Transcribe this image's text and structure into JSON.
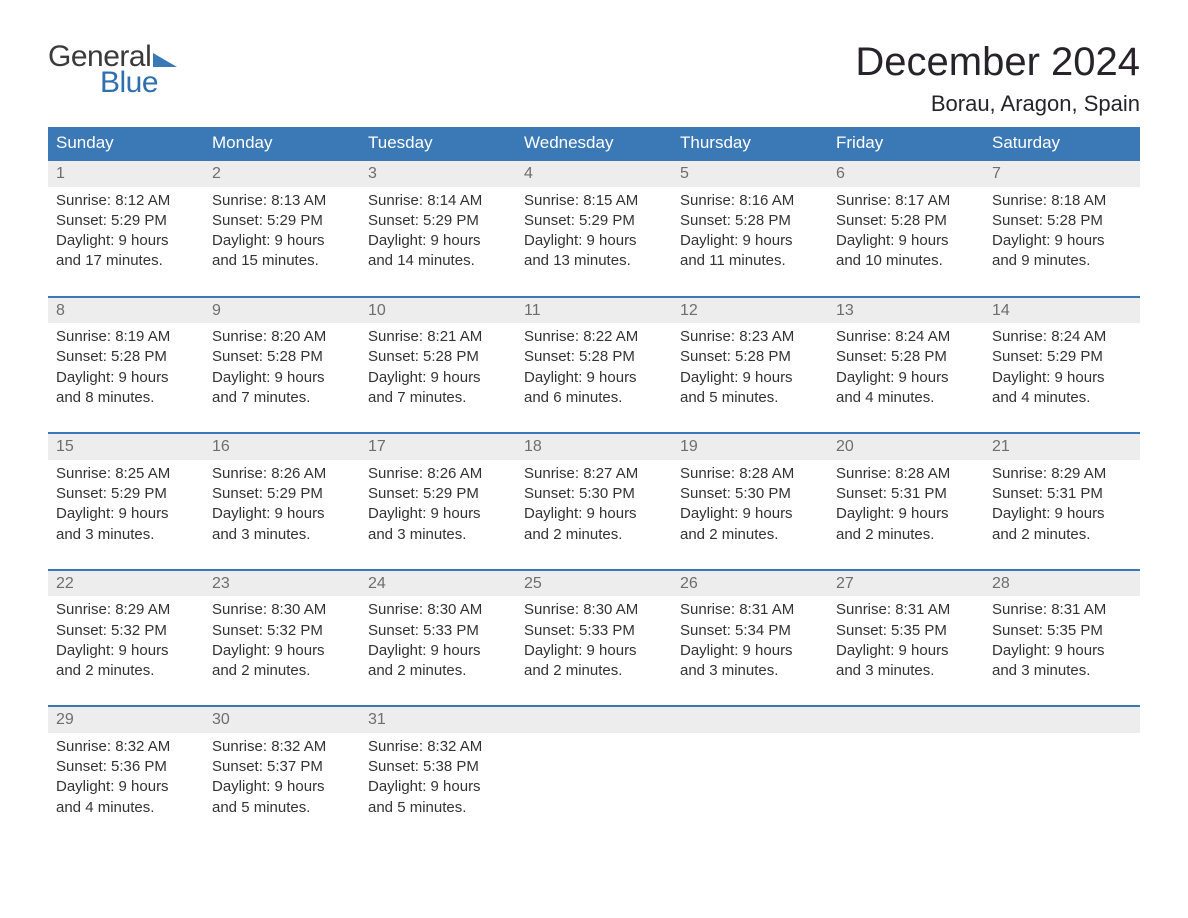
{
  "logo": {
    "general": "General",
    "blue": "Blue"
  },
  "title": "December 2024",
  "location": "Borau, Aragon, Spain",
  "day_headers": [
    "Sunday",
    "Monday",
    "Tuesday",
    "Wednesday",
    "Thursday",
    "Friday",
    "Saturday"
  ],
  "colors": {
    "header_bg": "#3a78b6",
    "header_text": "#ffffff",
    "daynum_bg": "#ededed",
    "daynum_text": "#6e6e6e",
    "body_text": "#333333",
    "title_text": "#26242a",
    "logo_blue": "#2f6fae",
    "row_divider": "#3a78b6",
    "background": "#ffffff"
  },
  "fonts": {
    "family": "Arial",
    "title_size": 40,
    "location_size": 22,
    "header_size": 17,
    "daynum_size": 16,
    "body_size": 15
  },
  "weeks": [
    [
      {
        "n": "1",
        "sr": "Sunrise: 8:12 AM",
        "ss": "Sunset: 5:29 PM",
        "d1": "Daylight: 9 hours",
        "d2": "and 17 minutes."
      },
      {
        "n": "2",
        "sr": "Sunrise: 8:13 AM",
        "ss": "Sunset: 5:29 PM",
        "d1": "Daylight: 9 hours",
        "d2": "and 15 minutes."
      },
      {
        "n": "3",
        "sr": "Sunrise: 8:14 AM",
        "ss": "Sunset: 5:29 PM",
        "d1": "Daylight: 9 hours",
        "d2": "and 14 minutes."
      },
      {
        "n": "4",
        "sr": "Sunrise: 8:15 AM",
        "ss": "Sunset: 5:29 PM",
        "d1": "Daylight: 9 hours",
        "d2": "and 13 minutes."
      },
      {
        "n": "5",
        "sr": "Sunrise: 8:16 AM",
        "ss": "Sunset: 5:28 PM",
        "d1": "Daylight: 9 hours",
        "d2": "and 11 minutes."
      },
      {
        "n": "6",
        "sr": "Sunrise: 8:17 AM",
        "ss": "Sunset: 5:28 PM",
        "d1": "Daylight: 9 hours",
        "d2": "and 10 minutes."
      },
      {
        "n": "7",
        "sr": "Sunrise: 8:18 AM",
        "ss": "Sunset: 5:28 PM",
        "d1": "Daylight: 9 hours",
        "d2": "and 9 minutes."
      }
    ],
    [
      {
        "n": "8",
        "sr": "Sunrise: 8:19 AM",
        "ss": "Sunset: 5:28 PM",
        "d1": "Daylight: 9 hours",
        "d2": "and 8 minutes."
      },
      {
        "n": "9",
        "sr": "Sunrise: 8:20 AM",
        "ss": "Sunset: 5:28 PM",
        "d1": "Daylight: 9 hours",
        "d2": "and 7 minutes."
      },
      {
        "n": "10",
        "sr": "Sunrise: 8:21 AM",
        "ss": "Sunset: 5:28 PM",
        "d1": "Daylight: 9 hours",
        "d2": "and 7 minutes."
      },
      {
        "n": "11",
        "sr": "Sunrise: 8:22 AM",
        "ss": "Sunset: 5:28 PM",
        "d1": "Daylight: 9 hours",
        "d2": "and 6 minutes."
      },
      {
        "n": "12",
        "sr": "Sunrise: 8:23 AM",
        "ss": "Sunset: 5:28 PM",
        "d1": "Daylight: 9 hours",
        "d2": "and 5 minutes."
      },
      {
        "n": "13",
        "sr": "Sunrise: 8:24 AM",
        "ss": "Sunset: 5:28 PM",
        "d1": "Daylight: 9 hours",
        "d2": "and 4 minutes."
      },
      {
        "n": "14",
        "sr": "Sunrise: 8:24 AM",
        "ss": "Sunset: 5:29 PM",
        "d1": "Daylight: 9 hours",
        "d2": "and 4 minutes."
      }
    ],
    [
      {
        "n": "15",
        "sr": "Sunrise: 8:25 AM",
        "ss": "Sunset: 5:29 PM",
        "d1": "Daylight: 9 hours",
        "d2": "and 3 minutes."
      },
      {
        "n": "16",
        "sr": "Sunrise: 8:26 AM",
        "ss": "Sunset: 5:29 PM",
        "d1": "Daylight: 9 hours",
        "d2": "and 3 minutes."
      },
      {
        "n": "17",
        "sr": "Sunrise: 8:26 AM",
        "ss": "Sunset: 5:29 PM",
        "d1": "Daylight: 9 hours",
        "d2": "and 3 minutes."
      },
      {
        "n": "18",
        "sr": "Sunrise: 8:27 AM",
        "ss": "Sunset: 5:30 PM",
        "d1": "Daylight: 9 hours",
        "d2": "and 2 minutes."
      },
      {
        "n": "19",
        "sr": "Sunrise: 8:28 AM",
        "ss": "Sunset: 5:30 PM",
        "d1": "Daylight: 9 hours",
        "d2": "and 2 minutes."
      },
      {
        "n": "20",
        "sr": "Sunrise: 8:28 AM",
        "ss": "Sunset: 5:31 PM",
        "d1": "Daylight: 9 hours",
        "d2": "and 2 minutes."
      },
      {
        "n": "21",
        "sr": "Sunrise: 8:29 AM",
        "ss": "Sunset: 5:31 PM",
        "d1": "Daylight: 9 hours",
        "d2": "and 2 minutes."
      }
    ],
    [
      {
        "n": "22",
        "sr": "Sunrise: 8:29 AM",
        "ss": "Sunset: 5:32 PM",
        "d1": "Daylight: 9 hours",
        "d2": "and 2 minutes."
      },
      {
        "n": "23",
        "sr": "Sunrise: 8:30 AM",
        "ss": "Sunset: 5:32 PM",
        "d1": "Daylight: 9 hours",
        "d2": "and 2 minutes."
      },
      {
        "n": "24",
        "sr": "Sunrise: 8:30 AM",
        "ss": "Sunset: 5:33 PM",
        "d1": "Daylight: 9 hours",
        "d2": "and 2 minutes."
      },
      {
        "n": "25",
        "sr": "Sunrise: 8:30 AM",
        "ss": "Sunset: 5:33 PM",
        "d1": "Daylight: 9 hours",
        "d2": "and 2 minutes."
      },
      {
        "n": "26",
        "sr": "Sunrise: 8:31 AM",
        "ss": "Sunset: 5:34 PM",
        "d1": "Daylight: 9 hours",
        "d2": "and 3 minutes."
      },
      {
        "n": "27",
        "sr": "Sunrise: 8:31 AM",
        "ss": "Sunset: 5:35 PM",
        "d1": "Daylight: 9 hours",
        "d2": "and 3 minutes."
      },
      {
        "n": "28",
        "sr": "Sunrise: 8:31 AM",
        "ss": "Sunset: 5:35 PM",
        "d1": "Daylight: 9 hours",
        "d2": "and 3 minutes."
      }
    ],
    [
      {
        "n": "29",
        "sr": "Sunrise: 8:32 AM",
        "ss": "Sunset: 5:36 PM",
        "d1": "Daylight: 9 hours",
        "d2": "and 4 minutes."
      },
      {
        "n": "30",
        "sr": "Sunrise: 8:32 AM",
        "ss": "Sunset: 5:37 PM",
        "d1": "Daylight: 9 hours",
        "d2": "and 5 minutes."
      },
      {
        "n": "31",
        "sr": "Sunrise: 8:32 AM",
        "ss": "Sunset: 5:38 PM",
        "d1": "Daylight: 9 hours",
        "d2": "and 5 minutes."
      },
      null,
      null,
      null,
      null
    ]
  ]
}
